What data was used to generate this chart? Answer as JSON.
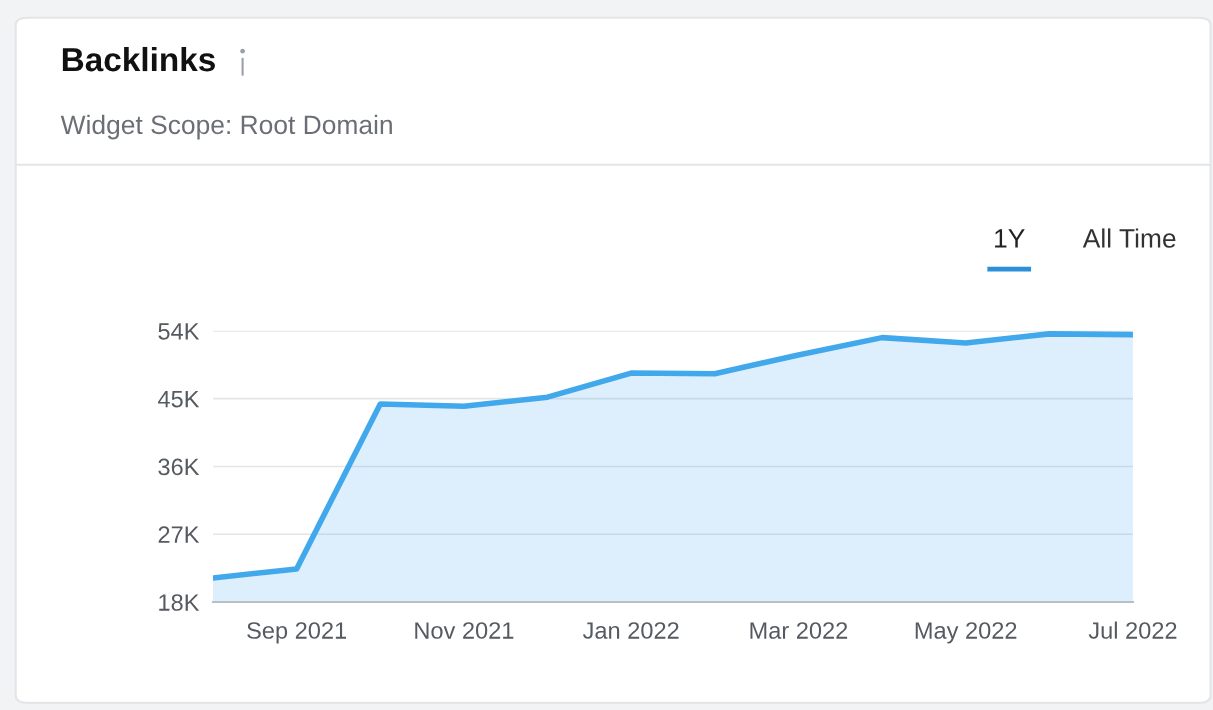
{
  "chart_data": {
    "type": "area",
    "title": "Backlinks",
    "subtitle": "Widget Scope: Root Domain",
    "annotations": [
      "1Y",
      "All Time"
    ],
    "categories": [
      null,
      "Sep 2021",
      null,
      "Nov 2021",
      null,
      "Jan 2022",
      null,
      "Mar 2022",
      null,
      "May 2022",
      null,
      "Jul 2022"
    ],
    "series": [
      {
        "color": "#42a8ec",
        "values": [
          21200,
          22400,
          44300,
          44000,
          45200,
          48400,
          48300,
          50800,
          53100,
          52400,
          53600,
          53500
        ]
      }
    ],
    "ylim": [
      18000,
      54000
    ],
    "yticks": [
      {
        "value": 18000,
        "label": "18K"
      },
      {
        "value": 27000,
        "label": "27K"
      },
      {
        "value": 36000,
        "label": "36K"
      },
      {
        "value": 45000,
        "label": "45K"
      },
      {
        "value": 54000,
        "label": "54K"
      }
    ],
    "grid": "y",
    "legend": false
  }
}
